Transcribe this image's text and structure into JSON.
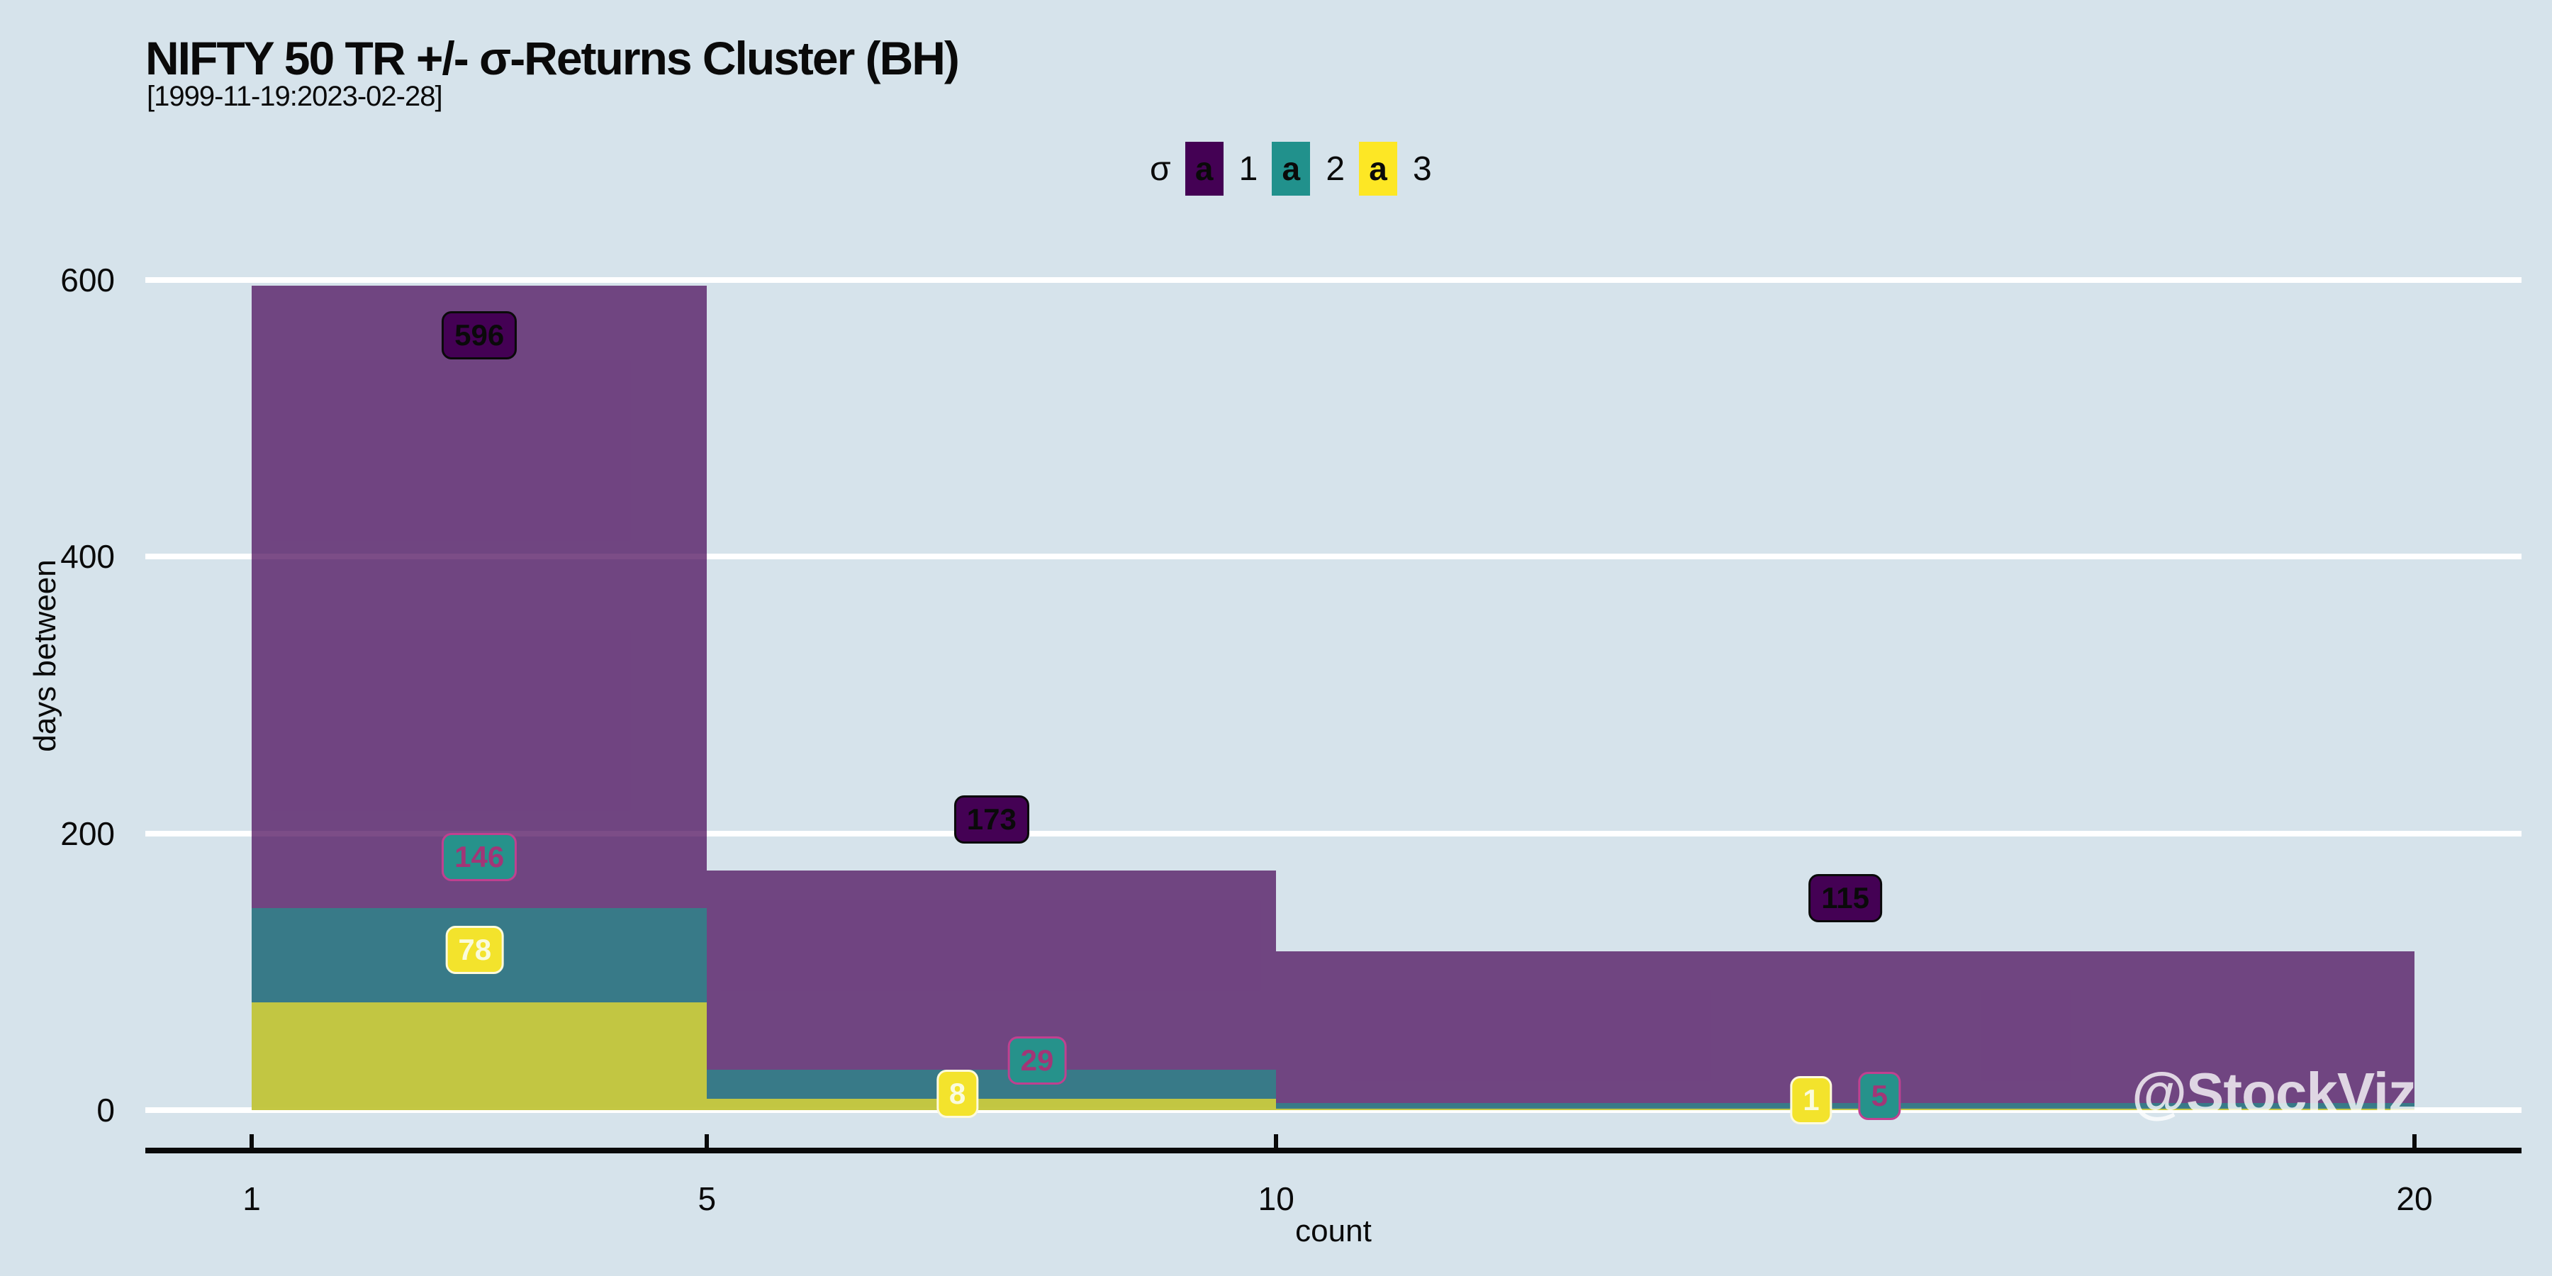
{
  "title": "NIFTY 50 TR +/- σ-Returns Cluster (BH)",
  "subtitle": "[1999-11-19:2023-02-28]",
  "watermark": "@StockViz",
  "colors": {
    "background": "#d6e3eb",
    "gridline": "#ffffff",
    "axis": "#0a0a0a",
    "series_swatches": [
      "#440154",
      "#21918c",
      "#fde725"
    ],
    "series_fills": [
      "rgba(68,1,84,0.70)",
      "rgba(33,145,140,0.70)",
      "rgba(253,231,37,0.70)"
    ]
  },
  "legend": {
    "title": "σ",
    "key_glyph": "a",
    "items": [
      {
        "label": "1",
        "color": "#440154"
      },
      {
        "label": "2",
        "color": "#21918c"
      },
      {
        "label": "3",
        "color": "#fde725"
      }
    ]
  },
  "x_axis": {
    "label": "count",
    "ticks": [
      "1",
      "5",
      "10",
      "20"
    ]
  },
  "y_axis": {
    "label": "days between",
    "ticks": [
      "0",
      "200",
      "400",
      "600"
    ]
  },
  "chart_data": {
    "type": "area",
    "subtype": "overlaid-step-histogram",
    "title": "NIFTY 50 TR +/- σ-Returns Cluster (BH)",
    "xlabel": "count",
    "ylabel": "days between",
    "xlim": [
      1,
      20
    ],
    "ylim": [
      0,
      600
    ],
    "x_breaks": [
      1,
      5,
      10,
      20
    ],
    "x_tick_values": [
      1,
      5,
      10,
      20
    ],
    "y_tick_values": [
      0,
      200,
      400,
      600
    ],
    "grid": "horizontal-white-lines",
    "legend_position": "top-center",
    "bin_edges": [
      1,
      5,
      10,
      20
    ],
    "series": [
      {
        "name": "1",
        "sigma": 1,
        "values": [
          596,
          173,
          115
        ]
      },
      {
        "name": "2",
        "sigma": 2,
        "values": [
          146,
          29,
          5
        ]
      },
      {
        "name": "3",
        "sigma": 3,
        "values": [
          78,
          8,
          1
        ]
      }
    ],
    "value_labels": [
      {
        "text": "596",
        "series": 1,
        "x": 3.0,
        "y": 560
      },
      {
        "text": "146",
        "series": 2,
        "x": 3.0,
        "y": 183
      },
      {
        "text": "78",
        "series": 3,
        "x": 2.96,
        "y": 116
      },
      {
        "text": "173",
        "series": 1,
        "x": 7.5,
        "y": 210
      },
      {
        "text": "29",
        "series": 2,
        "x": 7.9,
        "y": 36
      },
      {
        "text": "8",
        "series": 3,
        "x": 7.2,
        "y": 12
      },
      {
        "text": "115",
        "series": 1,
        "x": 15.0,
        "y": 153
      },
      {
        "text": "1",
        "series": 3,
        "x": 14.7,
        "y": 7
      },
      {
        "text": "5",
        "series": 2,
        "x": 15.3,
        "y": 10
      }
    ],
    "label_styles": [
      {
        "bg": "#440154",
        "border": "#0a0a0a",
        "text": "#0a0a0a"
      },
      {
        "bg": "#26928b",
        "border": "#c04090",
        "text": "#a23677"
      },
      {
        "bg": "#f3e32c",
        "border": "#fdfadc",
        "text": "#fafbdc"
      }
    ]
  }
}
